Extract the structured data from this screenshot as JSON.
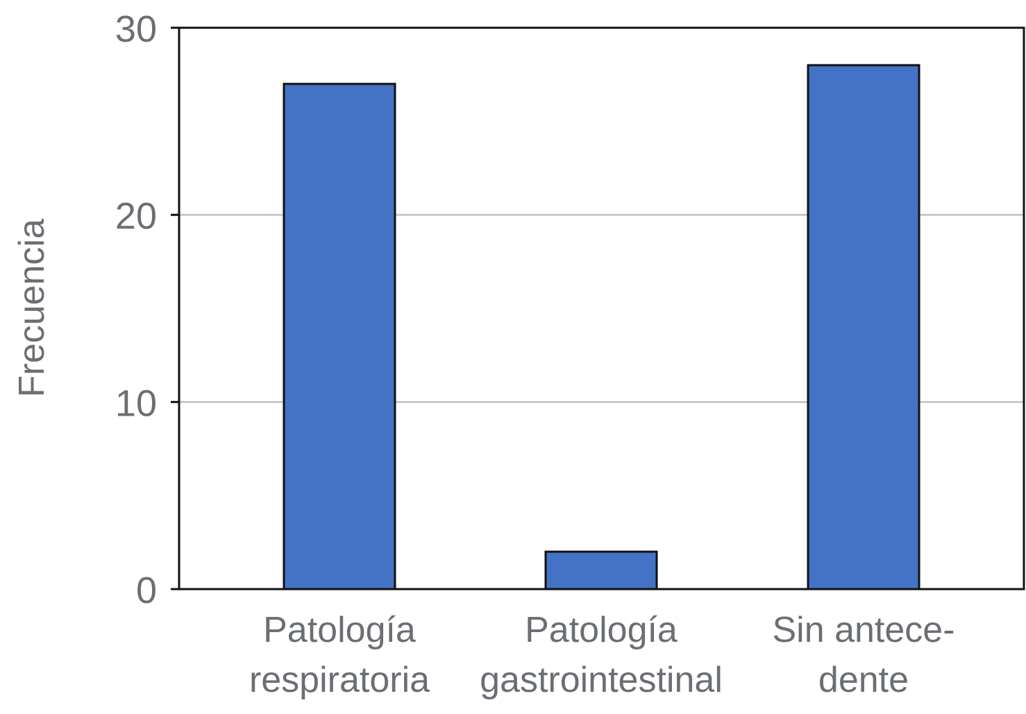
{
  "chart_data": {
    "type": "bar",
    "title": "",
    "xlabel": "",
    "ylabel": "Frecuencia",
    "ylim": [
      0,
      30
    ],
    "yticks": [
      0,
      10,
      20,
      30
    ],
    "grid": "horizontal",
    "categories": [
      [
        "Patología",
        "respiratoria"
      ],
      [
        "Patología",
        "gastrointestinal"
      ],
      [
        "Sin  antece-",
        "dente"
      ]
    ],
    "values": [
      27,
      2,
      28
    ],
    "bar_color": "#4472c4",
    "edge_color": "#111111",
    "grid_color": "#c0c0c0"
  }
}
